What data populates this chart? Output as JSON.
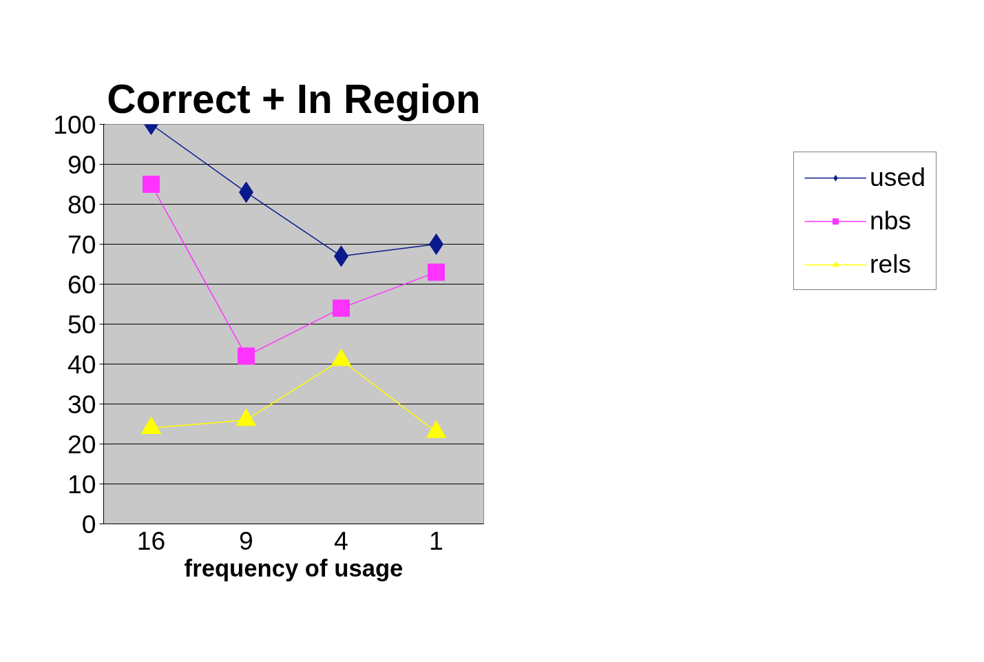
{
  "chart_data": {
    "type": "line",
    "title": "Correct + In Region",
    "xlabel": "frequency of usage",
    "categories": [
      "16",
      "9",
      "4",
      "1"
    ],
    "series": [
      {
        "name": "used",
        "color": "#0a1a8c",
        "marker": "diamond",
        "values": [
          100,
          83,
          67,
          70
        ]
      },
      {
        "name": "nbs",
        "color": "#ff33ff",
        "marker": "square",
        "values": [
          85,
          42,
          54,
          63
        ]
      },
      {
        "name": "rels",
        "color": "#ffff00",
        "marker": "triangle",
        "values": [
          24,
          26,
          41,
          23
        ]
      }
    ],
    "ylim": [
      0,
      100
    ],
    "yticks": [
      0,
      10,
      20,
      30,
      40,
      50,
      60,
      70,
      80,
      90,
      100
    ],
    "grid": "y",
    "legend": "right",
    "line_style": "solid"
  }
}
